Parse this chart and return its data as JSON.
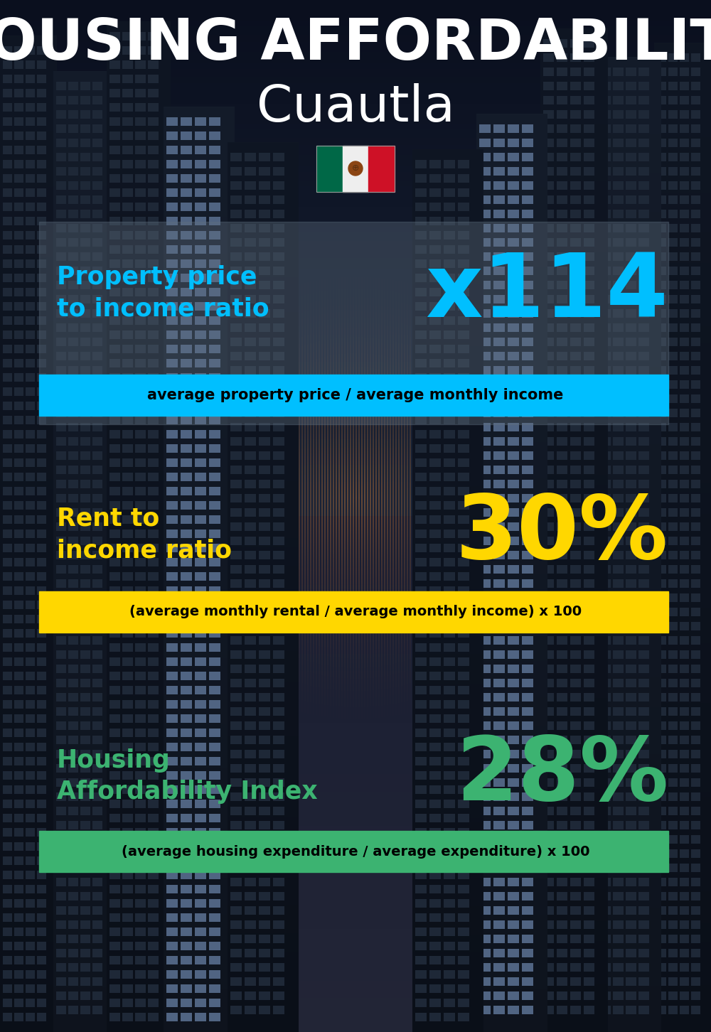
{
  "title_main": "HOUSING AFFORDABILITY",
  "title_sub": "Cuautla",
  "section1_label": "Property price\nto income ratio",
  "section1_value": "x114",
  "section1_label_color": "#00BFFF",
  "section1_value_color": "#00BFFF",
  "section1_banner": "average property price / average monthly income",
  "section1_banner_bg": "#00BFFF",
  "section2_label": "Rent to\nincome ratio",
  "section2_value": "30%",
  "section2_label_color": "#FFD700",
  "section2_value_color": "#FFD700",
  "section2_banner": "(average monthly rental / average monthly income) x 100",
  "section2_banner_bg": "#FFD700",
  "section3_label": "Housing\nAffordability Index",
  "section3_value": "28%",
  "section3_label_color": "#3CB371",
  "section3_value_color": "#3CB371",
  "section3_banner": "(average housing expenditure / average expenditure) x 100",
  "section3_banner_bg": "#3CB371",
  "bg_color": "#0a0f1a"
}
